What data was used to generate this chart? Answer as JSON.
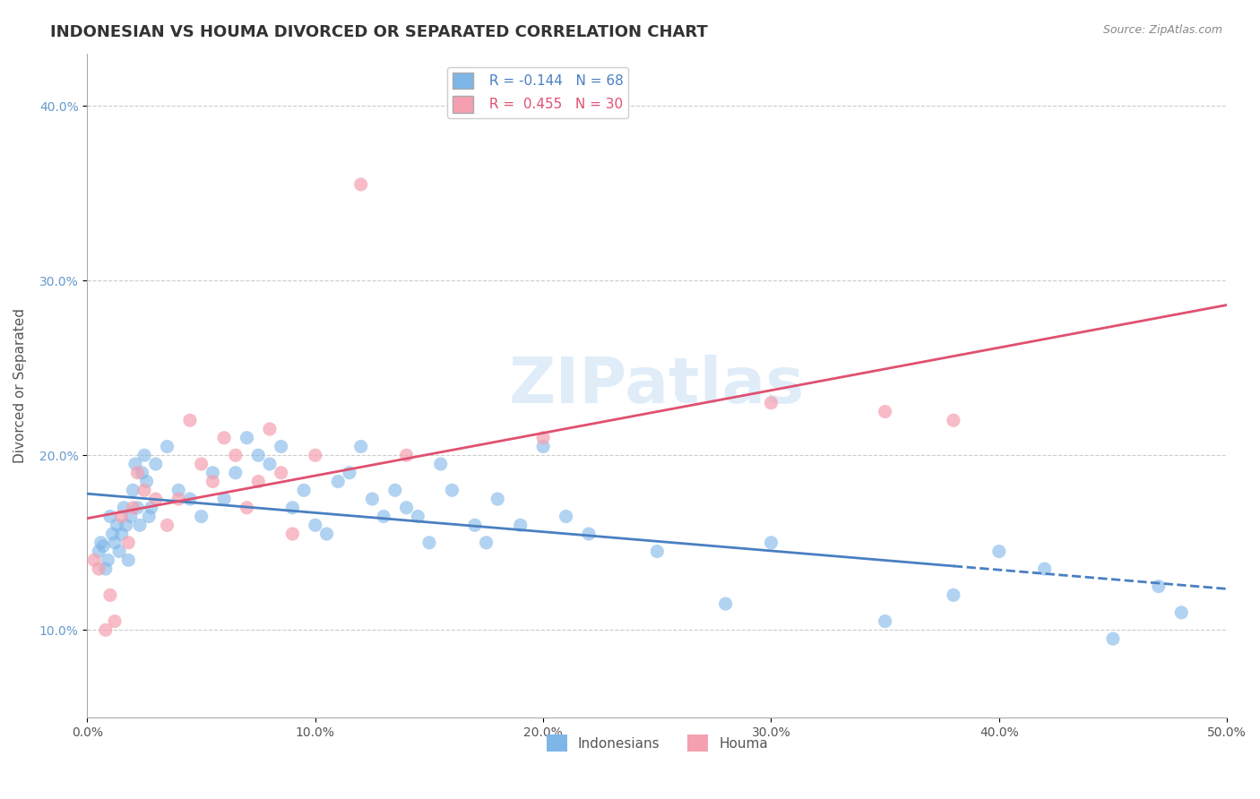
{
  "title": "INDONESIAN VS HOUMA DIVORCED OR SEPARATED CORRELATION CHART",
  "source": "Source: ZipAtlas.com",
  "ylabel": "Divorced or Separated",
  "xlim": [
    0.0,
    50.0
  ],
  "ylim": [
    5.0,
    43.0
  ],
  "xticks": [
    0.0,
    10.0,
    20.0,
    30.0,
    40.0,
    50.0
  ],
  "yticks": [
    10.0,
    20.0,
    30.0,
    40.0
  ],
  "ytick_labels": [
    "10.0%",
    "20.0%",
    "30.0%",
    "40.0%"
  ],
  "xtick_labels": [
    "0.0%",
    "10.0%",
    "20.0%",
    "30.0%",
    "40.0%",
    "50.0%"
  ],
  "legend_labels": [
    "Indonesians",
    "Houma"
  ],
  "R_blue": -0.144,
  "N_blue": 68,
  "R_pink": 0.455,
  "N_pink": 30,
  "blue_color": "#7eb6e8",
  "pink_color": "#f4a0b0",
  "blue_line_color": "#4a7fc1",
  "pink_line_color": "#e05070",
  "blue_scatter": [
    [
      0.5,
      14.5
    ],
    [
      0.6,
      15.0
    ],
    [
      0.7,
      14.8
    ],
    [
      0.8,
      13.5
    ],
    [
      0.9,
      14.0
    ],
    [
      1.0,
      16.5
    ],
    [
      1.1,
      15.5
    ],
    [
      1.2,
      15.0
    ],
    [
      1.3,
      16.0
    ],
    [
      1.4,
      14.5
    ],
    [
      1.5,
      15.5
    ],
    [
      1.6,
      17.0
    ],
    [
      1.7,
      16.0
    ],
    [
      1.8,
      14.0
    ],
    [
      1.9,
      16.5
    ],
    [
      2.0,
      18.0
    ],
    [
      2.1,
      19.5
    ],
    [
      2.2,
      17.0
    ],
    [
      2.3,
      16.0
    ],
    [
      2.4,
      19.0
    ],
    [
      2.5,
      20.0
    ],
    [
      2.6,
      18.5
    ],
    [
      2.7,
      16.5
    ],
    [
      2.8,
      17.0
    ],
    [
      3.0,
      19.5
    ],
    [
      3.5,
      20.5
    ],
    [
      4.0,
      18.0
    ],
    [
      4.5,
      17.5
    ],
    [
      5.0,
      16.5
    ],
    [
      5.5,
      19.0
    ],
    [
      6.0,
      17.5
    ],
    [
      6.5,
      19.0
    ],
    [
      7.0,
      21.0
    ],
    [
      7.5,
      20.0
    ],
    [
      8.0,
      19.5
    ],
    [
      8.5,
      20.5
    ],
    [
      9.0,
      17.0
    ],
    [
      9.5,
      18.0
    ],
    [
      10.0,
      16.0
    ],
    [
      10.5,
      15.5
    ],
    [
      11.0,
      18.5
    ],
    [
      11.5,
      19.0
    ],
    [
      12.0,
      20.5
    ],
    [
      12.5,
      17.5
    ],
    [
      13.0,
      16.5
    ],
    [
      13.5,
      18.0
    ],
    [
      14.0,
      17.0
    ],
    [
      14.5,
      16.5
    ],
    [
      15.0,
      15.0
    ],
    [
      15.5,
      19.5
    ],
    [
      16.0,
      18.0
    ],
    [
      17.0,
      16.0
    ],
    [
      17.5,
      15.0
    ],
    [
      18.0,
      17.5
    ],
    [
      19.0,
      16.0
    ],
    [
      20.0,
      20.5
    ],
    [
      21.0,
      16.5
    ],
    [
      22.0,
      15.5
    ],
    [
      25.0,
      14.5
    ],
    [
      28.0,
      11.5
    ],
    [
      30.0,
      15.0
    ],
    [
      35.0,
      10.5
    ],
    [
      38.0,
      12.0
    ],
    [
      40.0,
      14.5
    ],
    [
      42.0,
      13.5
    ],
    [
      45.0,
      9.5
    ],
    [
      47.0,
      12.5
    ],
    [
      48.0,
      11.0
    ]
  ],
  "pink_scatter": [
    [
      0.3,
      14.0
    ],
    [
      0.5,
      13.5
    ],
    [
      0.8,
      10.0
    ],
    [
      1.0,
      12.0
    ],
    [
      1.2,
      10.5
    ],
    [
      1.5,
      16.5
    ],
    [
      1.8,
      15.0
    ],
    [
      2.0,
      17.0
    ],
    [
      2.2,
      19.0
    ],
    [
      2.5,
      18.0
    ],
    [
      3.0,
      17.5
    ],
    [
      3.5,
      16.0
    ],
    [
      4.0,
      17.5
    ],
    [
      4.5,
      22.0
    ],
    [
      5.0,
      19.5
    ],
    [
      5.5,
      18.5
    ],
    [
      6.0,
      21.0
    ],
    [
      6.5,
      20.0
    ],
    [
      7.0,
      17.0
    ],
    [
      7.5,
      18.5
    ],
    [
      8.0,
      21.5
    ],
    [
      8.5,
      19.0
    ],
    [
      9.0,
      15.5
    ],
    [
      10.0,
      20.0
    ],
    [
      12.0,
      35.5
    ],
    [
      14.0,
      20.0
    ],
    [
      20.0,
      21.0
    ],
    [
      30.0,
      23.0
    ],
    [
      35.0,
      22.5
    ],
    [
      38.0,
      22.0
    ]
  ],
  "watermark": "ZIPatlas",
  "background_color": "#ffffff",
  "grid_color": "#cccccc",
  "title_fontsize": 13,
  "axis_label_fontsize": 11,
  "tick_fontsize": 10,
  "blue_solid_end": 38.0
}
